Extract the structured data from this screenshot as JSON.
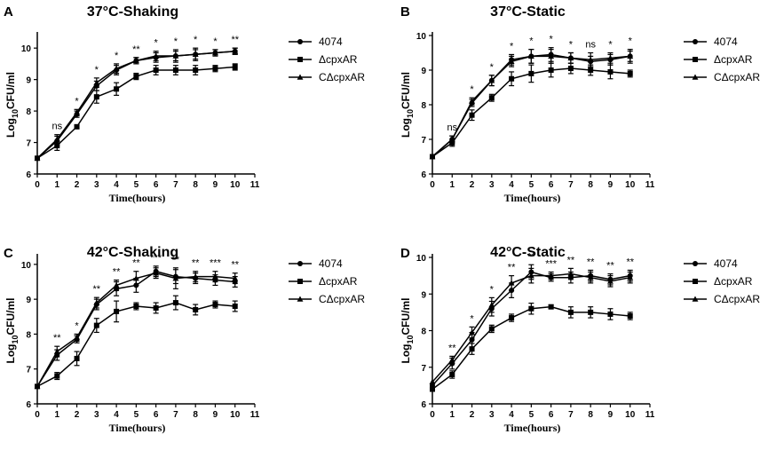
{
  "chart_data": [
    {
      "type": "line",
      "panel_label": "A",
      "title": "37°C-Shaking",
      "xlabel": "Time(hours)",
      "ylabel_main": "Log",
      "ylabel_sub": "10",
      "ylabel_tail": "CFU/ml",
      "xlim": [
        0,
        11
      ],
      "ylim": [
        6,
        10.4
      ],
      "xticks": [
        "0",
        "1",
        "2",
        "3",
        "4",
        "5",
        "6",
        "7",
        "8",
        "9",
        "10",
        "11"
      ],
      "yticks": [
        "6",
        "7",
        "8",
        "9",
        "10"
      ],
      "x": [
        0,
        1,
        2,
        3,
        4,
        5,
        6,
        7,
        8,
        9,
        10
      ],
      "series": [
        {
          "name": "4074",
          "marker": "circle",
          "values": [
            6.5,
            7.05,
            7.9,
            8.8,
            9.3,
            9.6,
            9.7,
            9.75,
            9.8,
            9.85,
            9.9
          ],
          "errors": [
            0,
            0.15,
            0.1,
            0.15,
            0.15,
            0.1,
            0.15,
            0.15,
            0.15,
            0.1,
            0.1
          ]
        },
        {
          "name": "ΔcpxAR",
          "marker": "square",
          "values": [
            6.5,
            6.9,
            7.5,
            8.45,
            8.7,
            9.1,
            9.3,
            9.3,
            9.3,
            9.35,
            9.4
          ],
          "errors": [
            0,
            0.15,
            0.05,
            0.2,
            0.2,
            0.1,
            0.15,
            0.15,
            0.15,
            0.1,
            0.1
          ]
        },
        {
          "name": "CΔcpxAR",
          "marker": "triangle",
          "values": [
            6.5,
            7.1,
            7.95,
            8.9,
            9.35,
            9.6,
            9.75,
            9.75,
            9.8,
            9.85,
            9.9
          ],
          "errors": [
            0,
            0.15,
            0.1,
            0.15,
            0.15,
            0.1,
            0.15,
            0.2,
            0.2,
            0.1,
            0.1
          ]
        }
      ],
      "annotations": [
        "ns",
        "*",
        "*",
        "*",
        "**",
        "*",
        "*",
        "*",
        "*",
        "**"
      ]
    },
    {
      "type": "line",
      "panel_label": "B",
      "title": "37°C-Static",
      "xlabel": "Time(hours)",
      "ylabel_main": "Log",
      "ylabel_sub": "10",
      "ylabel_tail": "CFU/ml",
      "xlim": [
        0,
        11
      ],
      "ylim": [
        6,
        10
      ],
      "xticks": [
        "0",
        "1",
        "2",
        "3",
        "4",
        "5",
        "6",
        "7",
        "8",
        "9",
        "10",
        "11"
      ],
      "yticks": [
        "6",
        "7",
        "8",
        "9",
        "10"
      ],
      "x": [
        0,
        1,
        2,
        3,
        4,
        5,
        6,
        7,
        8,
        9,
        10
      ],
      "series": [
        {
          "name": "4074",
          "marker": "circle",
          "values": [
            6.5,
            7.0,
            8.05,
            8.7,
            9.3,
            9.4,
            9.45,
            9.35,
            9.25,
            9.3,
            9.4
          ],
          "errors": [
            0,
            0.1,
            0.1,
            0.15,
            0.15,
            0.2,
            0.2,
            0.15,
            0.15,
            0.15,
            0.15
          ]
        },
        {
          "name": "ΔcpxAR",
          "marker": "square",
          "values": [
            6.5,
            6.9,
            7.7,
            8.2,
            8.75,
            8.9,
            9.0,
            9.05,
            9.0,
            8.95,
            8.9
          ],
          "errors": [
            0,
            0.1,
            0.15,
            0.1,
            0.2,
            0.25,
            0.2,
            0.15,
            0.15,
            0.2,
            0.1
          ]
        },
        {
          "name": "CΔcpxAR",
          "marker": "triangle",
          "values": [
            6.5,
            7.0,
            8.1,
            8.7,
            9.25,
            9.4,
            9.4,
            9.35,
            9.3,
            9.35,
            9.4
          ],
          "errors": [
            0,
            0.1,
            0.1,
            0.15,
            0.15,
            0.2,
            0.2,
            0.15,
            0.2,
            0.15,
            0.2
          ]
        }
      ],
      "annotations": [
        "ns",
        "*",
        "*",
        "*",
        "*",
        "*",
        "*",
        "ns",
        "*",
        "*"
      ]
    },
    {
      "type": "line",
      "panel_label": "C",
      "title": "42°C-Shaking",
      "xlabel": "Time(hours)",
      "ylabel_main": "Log",
      "ylabel_sub": "10",
      "ylabel_tail": "CFU/ml",
      "xlim": [
        0,
        11
      ],
      "ylim": [
        6,
        10.2
      ],
      "xticks": [
        "0",
        "1",
        "2",
        "3",
        "4",
        "5",
        "6",
        "7",
        "8",
        "9",
        "10",
        "11"
      ],
      "yticks": [
        "6",
        "7",
        "8",
        "9",
        "10"
      ],
      "x": [
        0,
        1,
        2,
        3,
        4,
        5,
        6,
        7,
        8,
        9,
        10
      ],
      "series": [
        {
          "name": "4074",
          "marker": "circle",
          "values": [
            6.5,
            7.4,
            7.85,
            8.85,
            9.3,
            9.4,
            9.8,
            9.65,
            9.6,
            9.55,
            9.5
          ],
          "errors": [
            0,
            0.15,
            0.1,
            0.15,
            0.2,
            0.2,
            0.15,
            0.2,
            0.15,
            0.15,
            0.15
          ]
        },
        {
          "name": "ΔcpxAR",
          "marker": "square",
          "values": [
            6.5,
            6.8,
            7.3,
            8.25,
            8.65,
            8.8,
            8.75,
            8.9,
            8.7,
            8.85,
            8.8
          ],
          "errors": [
            0,
            0.1,
            0.2,
            0.2,
            0.3,
            0.1,
            0.15,
            0.2,
            0.15,
            0.1,
            0.15
          ]
        },
        {
          "name": "CΔcpxAR",
          "marker": "triangle",
          "values": [
            6.5,
            7.5,
            7.9,
            8.9,
            9.4,
            9.6,
            9.75,
            9.6,
            9.65,
            9.65,
            9.6
          ],
          "errors": [
            0,
            0.15,
            0.1,
            0.15,
            0.15,
            0.2,
            0.15,
            0.3,
            0.15,
            0.15,
            0.15
          ]
        }
      ],
      "annotations": [
        "**",
        "*",
        "**",
        "**",
        "**",
        "***",
        "**",
        "**",
        "***",
        "**"
      ]
    },
    {
      "type": "line",
      "panel_label": "D",
      "title": "42°C-Static",
      "xlabel": "Time(hours)",
      "ylabel_main": "Log",
      "ylabel_sub": "10",
      "ylabel_tail": "CFU/ml",
      "xlim": [
        0,
        11
      ],
      "ylim": [
        6,
        10
      ],
      "xticks": [
        "0",
        "1",
        "2",
        "3",
        "4",
        "5",
        "6",
        "7",
        "8",
        "9",
        "10",
        "11"
      ],
      "yticks": [
        "6",
        "7",
        "8",
        "9",
        "10"
      ],
      "x": [
        0,
        1,
        2,
        3,
        4,
        5,
        6,
        7,
        8,
        9,
        10
      ],
      "series": [
        {
          "name": "4074",
          "marker": "circle",
          "values": [
            6.5,
            7.1,
            7.75,
            8.6,
            9.1,
            9.6,
            9.45,
            9.45,
            9.5,
            9.4,
            9.5
          ],
          "errors": [
            0,
            0.15,
            0.2,
            0.2,
            0.2,
            0.2,
            0.1,
            0.15,
            0.15,
            0.15,
            0.15
          ]
        },
        {
          "name": "ΔcpxAR",
          "marker": "square",
          "values": [
            6.4,
            6.8,
            7.5,
            8.05,
            8.35,
            8.6,
            8.65,
            8.5,
            8.5,
            8.45,
            8.4
          ],
          "errors": [
            0,
            0.1,
            0.15,
            0.1,
            0.1,
            0.15,
            0.05,
            0.15,
            0.15,
            0.15,
            0.1
          ]
        },
        {
          "name": "CΔcpxAR",
          "marker": "triangle",
          "values": [
            6.6,
            7.2,
            7.95,
            8.7,
            9.3,
            9.5,
            9.5,
            9.55,
            9.45,
            9.35,
            9.45
          ],
          "errors": [
            0,
            0.1,
            0.15,
            0.2,
            0.2,
            0.2,
            0.1,
            0.15,
            0.15,
            0.15,
            0.15
          ]
        }
      ],
      "annotations": [
        "**",
        "*",
        "*",
        "**",
        "**",
        "***",
        "**",
        "**",
        "**",
        "**"
      ]
    }
  ]
}
